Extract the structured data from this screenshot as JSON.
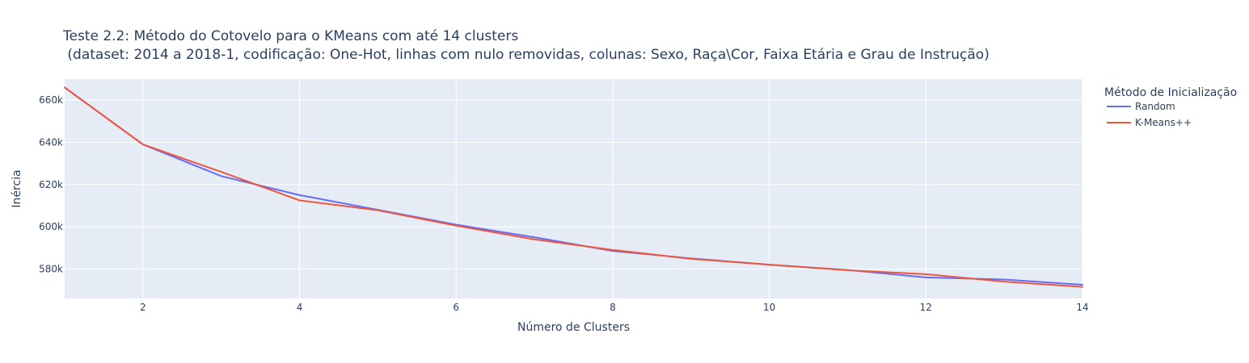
{
  "chart_data": {
    "type": "line",
    "title": "Teste 2.2: Método do Cotovelo para o KMeans com até 14 clusters",
    "subtitle": " (dataset: 2014 a 2018-1, codificação: One-Hot, linhas com nulo removidas, colunas: Sexo, Raça\\Cor, Faixa Etária e Grau de Instrução)",
    "xlabel": "Número de Clusters",
    "ylabel": "Inércia",
    "xlim": [
      1,
      14
    ],
    "ylim": [
      566000,
      670000
    ],
    "x": [
      1,
      2,
      3,
      4,
      5,
      6,
      7,
      8,
      9,
      10,
      11,
      12,
      13,
      14
    ],
    "x_ticks": [
      2,
      4,
      6,
      8,
      10,
      12,
      14
    ],
    "x_tick_labels": [
      "2",
      "4",
      "6",
      "8",
      "10",
      "12",
      "14"
    ],
    "y_ticks": [
      580000,
      600000,
      620000,
      640000,
      660000
    ],
    "y_tick_labels": [
      "580k",
      "600k",
      "620k",
      "640k",
      "660k"
    ],
    "legend_title": "Método de Inicialização",
    "legend_position": "right",
    "grid": true,
    "plot_bgcolor": "#e5ecf6",
    "series": [
      {
        "name": "Random",
        "color": "#636efa",
        "values": [
          666000,
          639000,
          624000,
          615000,
          608000,
          601000,
          595000,
          588500,
          585000,
          582000,
          579500,
          576000,
          575000,
          572500
        ]
      },
      {
        "name": "K-Means++",
        "color": "#ef553b",
        "values": [
          666000,
          639000,
          626000,
          612500,
          607800,
          600500,
          594000,
          589000,
          584800,
          582000,
          579400,
          577500,
          574000,
          571500
        ]
      }
    ]
  }
}
